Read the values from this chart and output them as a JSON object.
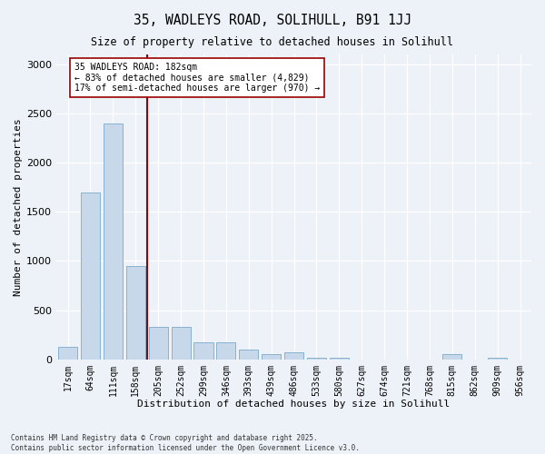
{
  "title": "35, WADLEYS ROAD, SOLIHULL, B91 1JJ",
  "subtitle": "Size of property relative to detached houses in Solihull",
  "xlabel": "Distribution of detached houses by size in Solihull",
  "ylabel": "Number of detached properties",
  "bar_color": "#c6d8ea",
  "bar_edge_color": "#7aaac8",
  "background_color": "#edf2f8",
  "grid_color": "#ffffff",
  "categories": [
    "17sqm",
    "64sqm",
    "111sqm",
    "158sqm",
    "205sqm",
    "252sqm",
    "299sqm",
    "346sqm",
    "393sqm",
    "439sqm",
    "486sqm",
    "533sqm",
    "580sqm",
    "627sqm",
    "674sqm",
    "721sqm",
    "768sqm",
    "815sqm",
    "862sqm",
    "909sqm",
    "956sqm"
  ],
  "bar_heights": [
    130,
    1700,
    2400,
    950,
    330,
    330,
    170,
    170,
    100,
    50,
    70,
    20,
    20,
    0,
    0,
    0,
    0,
    50,
    0,
    20,
    0
  ],
  "vline_pos": 3.51,
  "vline_color": "#990000",
  "annotation_text": "35 WADLEYS ROAD: 182sqm\n← 83% of detached houses are smaller (4,829)\n17% of semi-detached houses are larger (970) →",
  "ylim": [
    0,
    3100
  ],
  "yticks": [
    0,
    500,
    1000,
    1500,
    2000,
    2500,
    3000
  ],
  "footer": "Contains HM Land Registry data © Crown copyright and database right 2025.\nContains public sector information licensed under the Open Government Licence v3.0.",
  "figsize": [
    6.0,
    5.0
  ],
  "dpi": 100
}
